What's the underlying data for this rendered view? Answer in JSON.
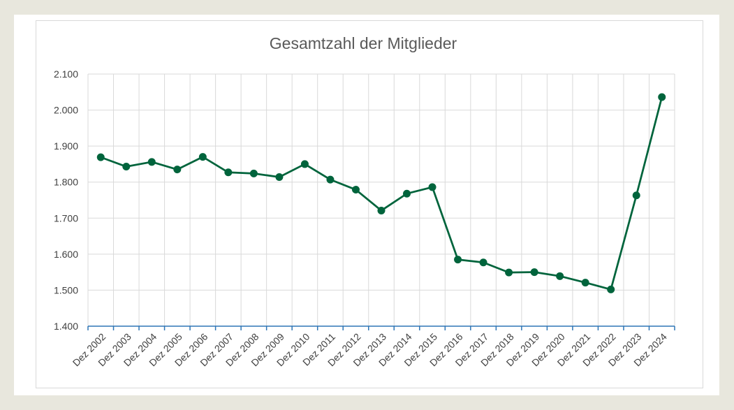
{
  "chart_data": {
    "type": "line",
    "title": "Gesamtzahl der Mitglieder",
    "categories": [
      "Dez 2002",
      "Dez 2003",
      "Dez 2004",
      "Dez 2005",
      "Dez 2006",
      "Dez 2007",
      "Dez 2008",
      "Dez 2009",
      "Dez 2010",
      "Dez 2011",
      "Dez 2012",
      "Dez 2013",
      "Dez 2014",
      "Dez 2015",
      "Dez 2016",
      "Dez 2017",
      "Dez 2018",
      "Dez 2019",
      "Dez 2020",
      "Dez 2021",
      "Dez 2022",
      "Dez 2023",
      "Dez 2024"
    ],
    "series": [
      {
        "values": [
          1869,
          1843,
          1856,
          1835,
          1870,
          1827,
          1824,
          1814,
          1850,
          1807,
          1779,
          1721,
          1768,
          1786,
          1585,
          1577,
          1549,
          1550,
          1539,
          1521,
          1502,
          1763,
          2036
        ],
        "color": "#00643c"
      }
    ],
    "ylim": [
      1400,
      2100
    ],
    "yticks": [
      "1.400",
      "1.500",
      "1.600",
      "1.700",
      "1.800",
      "1.900",
      "2.000",
      "2.100"
    ],
    "grid": true,
    "xlabel": "",
    "ylabel": ""
  }
}
